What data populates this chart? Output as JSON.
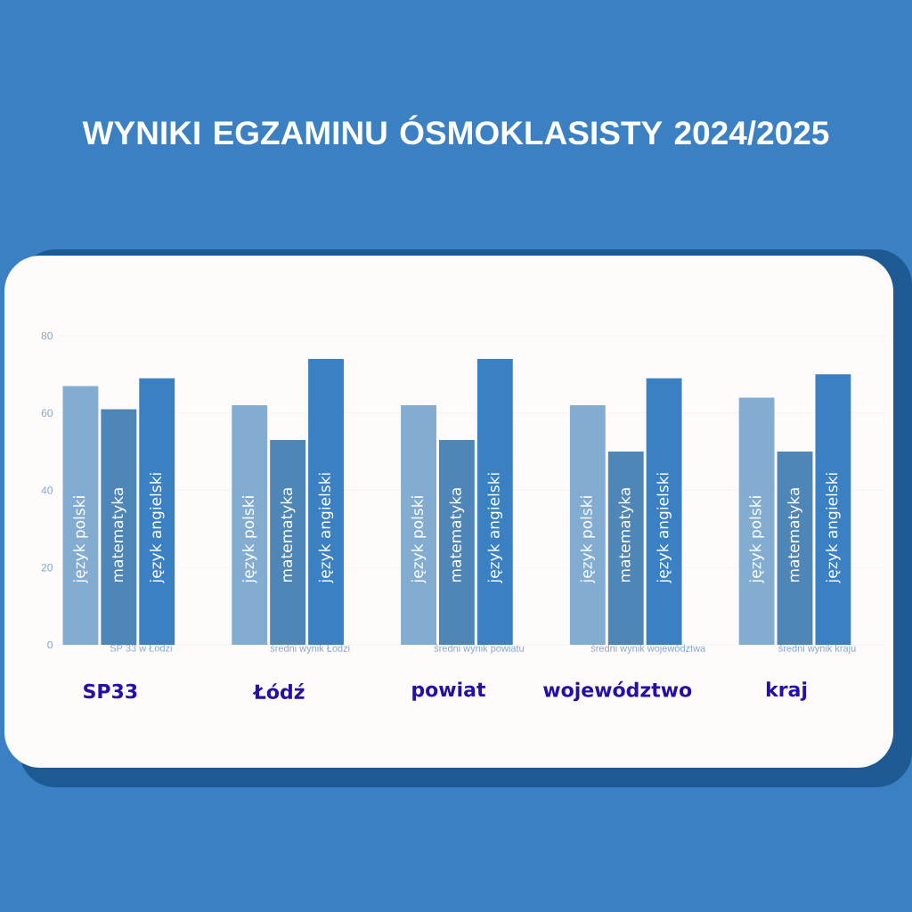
{
  "chart_data": {
    "type": "bar",
    "title": "WYNIKI EGZAMINU ÓSMOKLASISTY 2024/2025",
    "categories": [
      "SP 33 w Łodzi",
      "średni wynik Łodzi",
      "średni wynik powiatu",
      "średni wynik województwa",
      "średni wynik kraju"
    ],
    "series": [
      {
        "name": "język polski",
        "color": "#82acd0",
        "values": [
          67,
          62,
          62,
          62,
          64
        ]
      },
      {
        "name": "matematyka",
        "color": "#4f86b8",
        "values": [
          61,
          53,
          53,
          50,
          50
        ]
      },
      {
        "name": "język angielski",
        "color": "#3a80c2",
        "values": [
          69,
          74,
          74,
          69,
          70
        ]
      }
    ],
    "ylim": [
      0,
      80
    ],
    "yticks": [
      0,
      20,
      40,
      60,
      80
    ],
    "grid": "y",
    "legend": false,
    "annotations": [
      "SP33",
      "Łódź",
      "powiat",
      "województwo",
      "kraj"
    ]
  }
}
